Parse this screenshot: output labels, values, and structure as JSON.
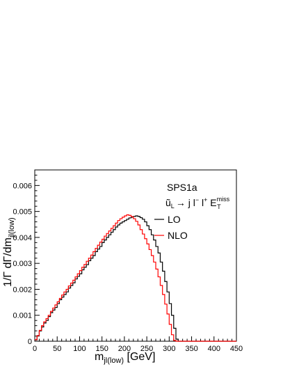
{
  "chart_data": {
    "type": "line",
    "step": true,
    "title": "",
    "xlabel": "m_{jl(low)} [GeV]",
    "ylabel": "1/Γ dΓ/dm_{jl(low)}",
    "xlim": [
      0,
      450
    ],
    "ylim": [
      0,
      0.0066
    ],
    "x_ticks": [
      "0",
      "50",
      "100",
      "150",
      "200",
      "250",
      "300",
      "350",
      "400",
      "450"
    ],
    "y_ticks": [
      "0",
      "0.001",
      "0.002",
      "0.003",
      "0.004",
      "0.005",
      "0.006"
    ],
    "bin_width": 5,
    "annotation": {
      "process": "SPS1a",
      "decay_parts": [
        "ũ",
        "L",
        "→ j l",
        "−",
        " l",
        "+",
        " E",
        "miss",
        "T"
      ]
    },
    "series": [
      {
        "name": "LO",
        "color": "#000000",
        "x_start": 0,
        "values": [
          5e-05,
          0.0002,
          0.0004,
          0.00055,
          0.0007,
          0.0008,
          0.00095,
          0.0011,
          0.0012,
          0.0013,
          0.00145,
          0.0016,
          0.0017,
          0.0018,
          0.0019,
          0.00205,
          0.00215,
          0.00225,
          0.0024,
          0.0025,
          0.0026,
          0.00275,
          0.00285,
          0.00295,
          0.0031,
          0.0032,
          0.0033,
          0.00345,
          0.00355,
          0.00365,
          0.0038,
          0.0039,
          0.004,
          0.0041,
          0.0042,
          0.0043,
          0.0044,
          0.00448,
          0.00455,
          0.0046,
          0.00465,
          0.0047,
          0.00475,
          0.00478,
          0.00481,
          0.00483,
          0.00481,
          0.00476,
          0.0047,
          0.0046,
          0.00445,
          0.0043,
          0.0041,
          0.0039,
          0.00365,
          0.0034,
          0.00305,
          0.0027,
          0.0023,
          0.0019,
          0.00145,
          0.001,
          0.0005,
          8e-05,
          0,
          0,
          0,
          0,
          0,
          0,
          0,
          0,
          0,
          0,
          0,
          0,
          0,
          0,
          0,
          0,
          0,
          0,
          0,
          0,
          0,
          0,
          0,
          0,
          0,
          0
        ]
      },
      {
        "name": "NLO",
        "color": "#ff0000",
        "x_start": 0,
        "values": [
          6e-05,
          0.00022,
          0.00042,
          0.0006,
          0.00075,
          0.00087,
          0.001,
          0.00115,
          0.00128,
          0.0014,
          0.00152,
          0.00165,
          0.00178,
          0.0019,
          0.002,
          0.00213,
          0.00224,
          0.00235,
          0.00248,
          0.0026,
          0.00272,
          0.00285,
          0.00296,
          0.00308,
          0.0032,
          0.00332,
          0.00345,
          0.00358,
          0.0037,
          0.00382,
          0.00393,
          0.00405,
          0.00415,
          0.00425,
          0.00435,
          0.00445,
          0.00455,
          0.00465,
          0.00472,
          0.00478,
          0.00483,
          0.00487,
          0.00485,
          0.0048,
          0.00472,
          0.00462,
          0.00448,
          0.0043,
          0.00413,
          0.00395,
          0.00375,
          0.00353,
          0.0033,
          0.00305,
          0.00278,
          0.00248,
          0.00215,
          0.0018,
          0.00143,
          0.00105,
          0.00065,
          0.00025,
          3e-05,
          0,
          0,
          0,
          0,
          0,
          0,
          0,
          0,
          0,
          0,
          0,
          0,
          0,
          0,
          0,
          0,
          0,
          0,
          0,
          0,
          0,
          0,
          0,
          0,
          0,
          0,
          0
        ]
      }
    ]
  }
}
